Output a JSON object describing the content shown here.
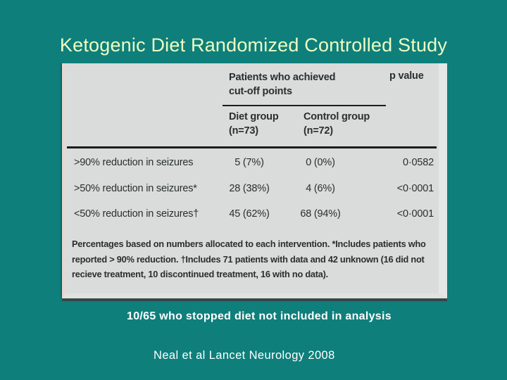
{
  "slide": {
    "title": "Ketogenic Diet Randomized Controlled Study",
    "note": "10/65 who stopped diet not included in analysis",
    "citation": "Neal et al Lancet Neurology 2008",
    "colors": {
      "background": "#0E7F7B",
      "title_text": "#EDFDC3",
      "body_text": "#FFFFFF",
      "table_background": "#D9DCDB",
      "table_text": "#2A2E2F",
      "table_rule": "#1A1D1E"
    }
  },
  "table": {
    "group_header": "Patients who achieved cut-off points",
    "pvalue_header": "p value",
    "columns": [
      {
        "label": "Diet group",
        "sub": "(n=73)"
      },
      {
        "label": "Control group",
        "sub": "(n=72)"
      }
    ],
    "rows": [
      {
        "label": ">90% reduction in seizures",
        "diet": "5 (7%)",
        "control": "0 (0%)",
        "p": "0·0582"
      },
      {
        "label": ">50% reduction in seizures*",
        "diet": "28 (38%)",
        "control": "4 (6%)",
        "p": "<0·0001"
      },
      {
        "label": "<50% reduction in seizures†",
        "diet": "45 (62%)",
        "control": "68 (94%)",
        "p": "<0·0001"
      }
    ],
    "footnote": "Percentages based on numbers allocated to each intervention. *Includes patients who reported > 90% reduction. †Includes 71 patients with data and 42 unknown (16 did not recieve treatment, 10 discontinued treatment, 16 with no data)."
  }
}
